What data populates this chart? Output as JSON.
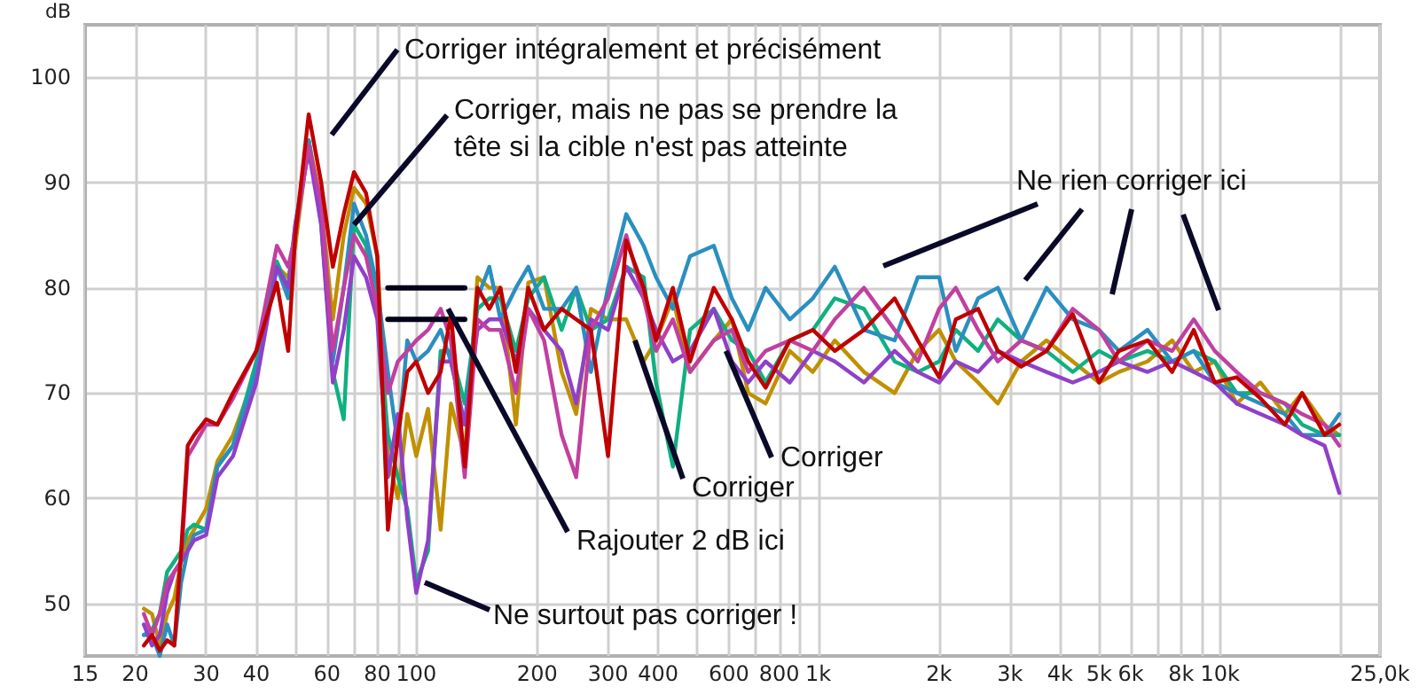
{
  "chart_data": {
    "type": "line",
    "ylabel": "dB",
    "log": "x",
    "grid": true,
    "marker": "none",
    "line_style": "solid",
    "xlim": [
      15,
      25000
    ],
    "ylim": [
      45,
      105
    ],
    "xticks": [
      15,
      20,
      30,
      40,
      {
        "value": 50,
        "label": null
      },
      60,
      {
        "value": 70,
        "label": null
      },
      80,
      {
        "value": 90,
        "label": null
      },
      100,
      200,
      300,
      400,
      {
        "value": 500,
        "label": null
      },
      600,
      {
        "value": 700,
        "label": null
      },
      800,
      {
        "value": 900,
        "label": null
      },
      {
        "value": 1000,
        "label": "1k"
      },
      {
        "value": 2000,
        "label": "2k"
      },
      {
        "value": 3000,
        "label": "3k"
      },
      {
        "value": 4000,
        "label": "4k"
      },
      {
        "value": 5000,
        "label": "5k"
      },
      {
        "value": 6000,
        "label": "6k"
      },
      {
        "value": 7000,
        "label": null
      },
      {
        "value": 8000,
        "label": "8k"
      },
      {
        "value": 9000,
        "label": null
      },
      {
        "value": 10000,
        "label": "10k"
      },
      {
        "value": 20000,
        "label": null
      },
      {
        "value": 25000,
        "label": "25,0k"
      }
    ],
    "yticks": [
      50,
      60,
      70,
      80,
      90,
      100
    ],
    "annotations": [
      "Corriger intégralement et précisément",
      {
        "text": "Corriger, mais ne pas se prendre la\ntête si la cible n'est pas atteinte",
        "x": 70,
        "y": 86
      },
      {
        "text": "Rajouter 2 dB ici",
        "x": 120,
        "y": 78
      },
      {
        "text": "Ne surtout pas corriger !",
        "x": 105,
        "y": 52
      },
      {
        "text": "Corriger",
        "x": 350,
        "y": 75
      },
      {
        "text": "Corriger",
        "x": 590,
        "y": 74
      },
      "Ne rien corriger ici"
    ],
    "x": [
      21,
      22,
      23,
      24,
      25,
      26,
      27,
      28,
      30,
      32,
      35,
      40,
      45,
      48,
      50,
      54,
      58,
      62,
      66,
      70,
      75,
      80,
      85,
      90,
      95,
      100,
      107,
      115,
      122,
      132,
      142,
      152,
      162,
      177,
      190,
      208,
      230,
      250,
      272,
      300,
      333,
      368,
      395,
      435,
      480,
      550,
      610,
      670,
      740,
      850,
      970,
      1100,
      1300,
      1550,
      1770,
      2000,
      2200,
      2500,
      2800,
      3200,
      3700,
      4300,
      5000,
      5600,
      6600,
      7600,
      8600,
      9700,
      11000,
      12600,
      14500,
      16000,
      18200,
      19800
    ],
    "series": [
      {
        "color": "#c09000",
        "values": [
          49.5,
          49,
          46,
          49,
          50.5,
          54,
          56,
          57,
          59,
          63.5,
          66,
          72,
          82,
          81,
          84,
          94,
          88,
          77,
          85,
          89.5,
          88,
          83,
          64,
          60,
          68,
          64,
          68.5,
          57,
          69,
          64,
          81,
          80,
          80,
          67,
          80.5,
          81,
          72,
          68,
          78,
          77,
          77,
          73,
          75,
          79,
          72,
          75,
          77,
          70,
          69,
          74,
          72,
          75,
          72,
          70,
          74,
          76,
          73,
          71,
          69,
          73,
          75,
          73,
          71,
          72,
          73,
          75,
          72,
          73,
          69,
          71,
          68,
          70,
          67,
          66
        ]
      },
      {
        "color": "#10b080",
        "values": [
          47,
          47.5,
          49,
          53,
          54,
          55,
          57,
          57.5,
          57,
          63,
          65,
          73,
          82.5,
          80,
          85,
          94,
          86,
          72,
          67.5,
          86,
          84,
          78,
          66,
          62,
          59,
          52,
          55,
          74,
          74,
          69,
          78,
          79,
          79,
          74,
          79,
          81,
          76,
          80,
          76,
          77,
          82,
          81,
          71,
          63,
          76,
          78,
          75,
          74,
          71,
          75,
          76,
          79,
          78,
          73,
          72,
          73,
          76,
          74,
          77,
          75,
          74,
          72,
          74,
          73,
          74,
          73,
          74,
          73,
          70,
          70,
          69,
          67,
          66,
          66
        ]
      },
      {
        "color": "#2a8fc0",
        "values": [
          47,
          47,
          45,
          48,
          46,
          52,
          55,
          56.5,
          57,
          63,
          65,
          72,
          82,
          79,
          86,
          94,
          87,
          73,
          80,
          88,
          85,
          80,
          72,
          65,
          75,
          73,
          74,
          76,
          73,
          67,
          79,
          82,
          77,
          80,
          82,
          78,
          78,
          80,
          72,
          80,
          87,
          84,
          81,
          78,
          83,
          84,
          79,
          76,
          80,
          77,
          79,
          82,
          76,
          75,
          81,
          81,
          74,
          79,
          80,
          75,
          80,
          77,
          76,
          74,
          76,
          73,
          74,
          71,
          70,
          69,
          68,
          66,
          66,
          68
        ]
      },
      {
        "color": "#9040c8",
        "values": [
          48,
          46,
          47,
          51,
          53,
          54,
          55,
          56,
          56.5,
          62,
          64,
          71,
          82,
          80,
          86,
          93,
          86,
          71,
          76,
          83,
          81,
          77,
          62,
          68,
          58,
          51,
          56,
          73,
          73,
          67,
          76,
          77,
          77,
          73,
          78,
          76,
          74,
          69,
          77,
          76,
          82,
          79,
          76,
          73,
          74,
          78,
          73,
          71,
          73,
          71,
          74,
          73,
          71,
          74,
          72,
          71,
          73,
          72,
          74,
          73,
          72,
          71,
          72,
          73,
          72,
          73,
          72,
          71,
          69,
          68,
          67,
          66,
          65,
          60.5
        ]
      },
      {
        "color": "#c040a0",
        "values": [
          49,
          47,
          49,
          52,
          53,
          54,
          64,
          65,
          67,
          67,
          69.5,
          74,
          84,
          82,
          85,
          93.5,
          88,
          74,
          80,
          85,
          83,
          78,
          70,
          73,
          74,
          75,
          76,
          78,
          75,
          62,
          77,
          76,
          76,
          70,
          78,
          75,
          66,
          62,
          76,
          79,
          85,
          79,
          74,
          77,
          72,
          75,
          76,
          72,
          74,
          75,
          74,
          77,
          80,
          76,
          73,
          78,
          80,
          76,
          73,
          75,
          74,
          78,
          76,
          73,
          75,
          74,
          77,
          74,
          72,
          70,
          69,
          68,
          67,
          65
        ]
      },
      {
        "color": "#000018",
        "values": [
          null,
          null,
          null,
          null,
          null,
          null,
          null,
          null,
          null,
          null,
          null,
          null,
          null,
          null,
          null,
          null,
          null,
          null,
          null,
          null,
          null,
          null,
          80,
          80,
          80,
          80,
          80,
          80,
          80,
          80,
          null,
          null,
          null,
          null,
          null,
          null,
          null,
          null,
          null,
          null,
          null,
          null,
          null,
          null,
          null,
          null,
          null,
          null,
          null,
          null,
          null,
          null,
          null,
          null,
          null,
          null,
          null,
          null,
          null,
          null,
          null,
          null,
          null,
          null,
          null,
          null,
          null,
          null,
          null,
          null,
          null,
          null,
          null,
          null
        ]
      },
      {
        "color": "#000018",
        "values": [
          null,
          null,
          null,
          null,
          null,
          null,
          null,
          null,
          null,
          null,
          null,
          null,
          null,
          null,
          null,
          null,
          null,
          null,
          null,
          null,
          null,
          null,
          77,
          77,
          77,
          77,
          77,
          77,
          77,
          77,
          null,
          null,
          null,
          null,
          null,
          null,
          null,
          null,
          null,
          null,
          null,
          null,
          null,
          null,
          null,
          null,
          null,
          null,
          null,
          null,
          null,
          null,
          null,
          null,
          null,
          null,
          null,
          null,
          null,
          null,
          null,
          null,
          null,
          null,
          null,
          null,
          null,
          null,
          null,
          null,
          null,
          null,
          null,
          null
        ]
      },
      {
        "color": "#c00000",
        "values": [
          46,
          47,
          45.5,
          46.5,
          46,
          55,
          65,
          66,
          67.5,
          67,
          70,
          74,
          80.5,
          74,
          85,
          96.5,
          90,
          82,
          87,
          91,
          89,
          83,
          57,
          66,
          72,
          73,
          70,
          72,
          77.5,
          63,
          80,
          78,
          80,
          72,
          80,
          76,
          78,
          77,
          76,
          64,
          84.5,
          80,
          75,
          80,
          73,
          80,
          77,
          73,
          70.5,
          75,
          76,
          74,
          76,
          79,
          75,
          71.5,
          77,
          78,
          74,
          72.5,
          74,
          77.5,
          71,
          74,
          75,
          72,
          76,
          71,
          71.5,
          69.5,
          67,
          70,
          66,
          67
        ]
      }
    ]
  }
}
